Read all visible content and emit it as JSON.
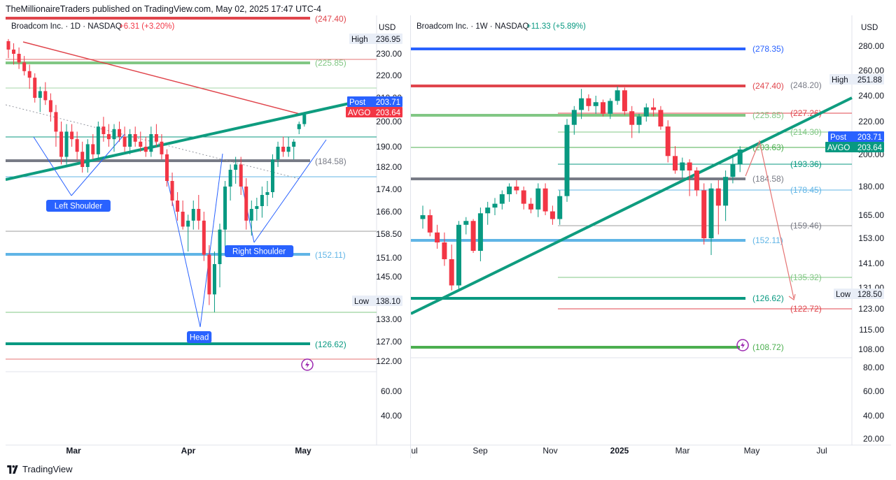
{
  "header": {
    "publisher": "TheMillionaireTraders published on TradingView.com, May 02, 2025 17:47 UTC-4"
  },
  "footer": {
    "brand": "TradingView",
    "logo_icon": "tradingview-logo-icon"
  },
  "colors": {
    "up": "#089981",
    "down": "#f23645",
    "trendline": "#0e9c7f",
    "red_line": "#e0454c",
    "blue_label": "#2962ff",
    "avgo_label": "#f23645",
    "lightblue": "#60b5e6",
    "green": "#4caf50"
  },
  "chart_data": [
    {
      "type": "candlestick",
      "name": "daily",
      "title": "Broadcom Inc. · 1D · NASDAQ",
      "change": "+6.31 (+3.20%)",
      "currency": "USD",
      "x_ticks": [
        "Mar",
        "Apr",
        "May"
      ],
      "y_ticks": [
        "236.95",
        "230.00",
        "220.00",
        "210.00",
        "200.00",
        "190.00",
        "182.00",
        "174.00",
        "166.00",
        "158.50",
        "151.00",
        "145.00",
        "138.10",
        "133.00",
        "127.00",
        "122.00",
        "60.00",
        "40.00"
      ],
      "tags": {
        "high": {
          "label": "High",
          "value": "236.95"
        },
        "low": {
          "label": "Low",
          "value": "138.10"
        },
        "post": {
          "label": "Post",
          "value": "203.71"
        },
        "last": {
          "label": "AVGO",
          "value": "203.64"
        }
      },
      "levels": [
        {
          "value": "(247.40)",
          "color": "#e0454c"
        },
        {
          "value": "(225.85)",
          "color": "#81c784"
        },
        {
          "value": "(184.58)",
          "color": "#787b86"
        },
        {
          "value": "(152.11)",
          "color": "#60b5e6"
        },
        {
          "value": "(126.62)",
          "color": "#089981"
        }
      ],
      "annotations": [
        {
          "text": "Left Shoulder"
        },
        {
          "text": "Head"
        },
        {
          "text": "Right Shoulder"
        }
      ],
      "candles": [
        [
          236,
          237,
          228,
          232
        ],
        [
          232,
          235,
          225,
          230
        ],
        [
          230,
          233,
          223,
          226
        ],
        [
          226,
          229,
          220,
          222
        ],
        [
          222,
          225,
          214,
          219
        ],
        [
          219,
          221,
          208,
          210
        ],
        [
          210,
          215,
          204,
          213
        ],
        [
          213,
          217,
          207,
          209
        ],
        [
          209,
          212,
          200,
          204
        ],
        [
          204,
          207,
          190,
          196
        ],
        [
          196,
          200,
          183,
          186
        ],
        [
          186,
          199,
          183,
          196
        ],
        [
          196,
          199,
          190,
          193
        ],
        [
          193,
          196,
          185,
          188
        ],
        [
          188,
          192,
          180,
          182
        ],
        [
          182,
          193,
          180,
          191
        ],
        [
          191,
          195,
          185,
          187
        ],
        [
          187,
          200,
          185,
          198
        ],
        [
          198,
          202,
          192,
          195
        ],
        [
          195,
          199,
          190,
          193
        ],
        [
          193,
          199,
          188,
          197
        ],
        [
          197,
          200,
          192,
          194
        ],
        [
          194,
          198,
          188,
          190
        ],
        [
          190,
          197,
          187,
          195
        ],
        [
          195,
          198,
          190,
          192
        ],
        [
          192,
          196,
          188,
          190
        ],
        [
          190,
          194,
          186,
          188
        ],
        [
          188,
          198,
          186,
          195
        ],
        [
          195,
          199,
          190,
          192
        ],
        [
          192,
          195,
          185,
          187
        ],
        [
          187,
          189,
          175,
          177
        ],
        [
          177,
          180,
          168,
          170
        ],
        [
          170,
          173,
          163,
          166
        ],
        [
          166,
          170,
          160,
          161
        ],
        [
          161,
          165,
          153,
          163
        ],
        [
          163,
          170,
          160,
          167
        ],
        [
          167,
          172,
          160,
          163
        ],
        [
          163,
          166,
          150,
          152
        ],
        [
          152,
          155,
          137,
          140
        ],
        [
          140,
          153,
          135,
          149
        ],
        [
          149,
          162,
          142,
          160
        ],
        [
          160,
          177,
          152,
          175
        ],
        [
          175,
          183,
          170,
          181
        ],
        [
          181,
          186,
          176,
          183
        ],
        [
          183,
          186,
          172,
          175
        ],
        [
          175,
          178,
          160,
          163
        ],
        [
          163,
          170,
          158,
          167
        ],
        [
          167,
          171,
          163,
          168
        ],
        [
          168,
          175,
          164,
          172
        ],
        [
          172,
          177,
          168,
          173
        ],
        [
          173,
          187,
          171,
          185
        ],
        [
          185,
          192,
          182,
          190
        ],
        [
          190,
          194,
          186,
          188
        ],
        [
          188,
          194,
          186,
          190
        ],
        [
          190,
          193,
          185,
          192
        ],
        [
          197,
          200,
          195,
          199
        ],
        [
          199,
          204,
          198,
          203
        ]
      ]
    },
    {
      "type": "candlestick",
      "name": "weekly",
      "title": "Broadcom Inc. · 1W · NASDAQ",
      "change": "+11.33 (+5.89%)",
      "currency": "USD",
      "x_ticks": [
        "Jul",
        "Sep",
        "Nov",
        "2025",
        "Mar",
        "May",
        "Jul"
      ],
      "y_ticks": [
        "280.00",
        "260.00",
        "251.88",
        "240.00",
        "220.00",
        "200.00",
        "180.00",
        "165.00",
        "153.00",
        "141.00",
        "131.00",
        "128.50",
        "123.00",
        "115.00",
        "108.00",
        "80.00",
        "60.00",
        "40.00",
        "20.00"
      ],
      "tags": {
        "high": {
          "label": "High",
          "value": "251.88"
        },
        "low": {
          "label": "Low",
          "value": "128.50"
        },
        "post": {
          "label": "Post",
          "value": "203.71"
        },
        "last": {
          "label": "AVGO",
          "value": "203.64"
        }
      },
      "levels": [
        {
          "value": "(278.35)",
          "color": "#2962ff"
        },
        {
          "value": "(247.40)",
          "color": "#e0454c"
        },
        {
          "value": "(248.20)",
          "color": "#787b86"
        },
        {
          "value": "(227.26)",
          "color": "#e0454c"
        },
        {
          "value": "(225.85)",
          "color": "#81c784"
        },
        {
          "value": "(214.30)",
          "color": "#81c784"
        },
        {
          "value": "(203.63)",
          "color": "#4caf50"
        },
        {
          "value": "(193.36)",
          "color": "#089981"
        },
        {
          "value": "(184.58)",
          "color": "#787b86"
        },
        {
          "value": "(178.45)",
          "color": "#60b5e6"
        },
        {
          "value": "(159.46)",
          "color": "#787b86"
        },
        {
          "value": "(152.11)",
          "color": "#60b5e6"
        },
        {
          "value": "(135.32)",
          "color": "#81c784"
        },
        {
          "value": "(126.62)",
          "color": "#089981"
        },
        {
          "value": "(122.72)",
          "color": "#e0454c"
        },
        {
          "value": "(108.72)",
          "color": "#4caf50"
        }
      ],
      "candles": [
        [
          163,
          170,
          158,
          165
        ],
        [
          165,
          168,
          154,
          156
        ],
        [
          156,
          160,
          148,
          151
        ],
        [
          151,
          156,
          140,
          143
        ],
        [
          143,
          150,
          130,
          132
        ],
        [
          132,
          162,
          130,
          160
        ],
        [
          160,
          164,
          155,
          162
        ],
        [
          162,
          163,
          146,
          147
        ],
        [
          147,
          169,
          142,
          166
        ],
        [
          166,
          172,
          160,
          169
        ],
        [
          169,
          174,
          165,
          171
        ],
        [
          171,
          178,
          168,
          176
        ],
        [
          176,
          182,
          172,
          180
        ],
        [
          180,
          184,
          176,
          178
        ],
        [
          178,
          180,
          168,
          171
        ],
        [
          171,
          174,
          166,
          168
        ],
        [
          168,
          182,
          164,
          179
        ],
        [
          179,
          182,
          165,
          167
        ],
        [
          167,
          170,
          160,
          163
        ],
        [
          163,
          178,
          160,
          175
        ],
        [
          175,
          222,
          172,
          218
        ],
        [
          218,
          232,
          212,
          229
        ],
        [
          229,
          245,
          222,
          238
        ],
        [
          238,
          241,
          228,
          232
        ],
        [
          232,
          240,
          226,
          235
        ],
        [
          235,
          237,
          224,
          226
        ],
        [
          226,
          238,
          222,
          236
        ],
        [
          236,
          247,
          233,
          244
        ],
        [
          244,
          246,
          225,
          228
        ],
        [
          228,
          232,
          210,
          218
        ],
        [
          218,
          226,
          213,
          224
        ],
        [
          224,
          234,
          220,
          231
        ],
        [
          231,
          238,
          224,
          229
        ],
        [
          229,
          232,
          215,
          217
        ],
        [
          217,
          221,
          195,
          199
        ],
        [
          199,
          205,
          188,
          190
        ],
        [
          190,
          198,
          185,
          195
        ],
        [
          195,
          197,
          175,
          190
        ],
        [
          190,
          192,
          175,
          178
        ],
        [
          178,
          182,
          150,
          153
        ],
        [
          153,
          182,
          145,
          179
        ],
        [
          179,
          184,
          155,
          170
        ],
        [
          170,
          190,
          162,
          186
        ],
        [
          186,
          200,
          182,
          194
        ],
        [
          194,
          205,
          189,
          203
        ]
      ]
    }
  ]
}
